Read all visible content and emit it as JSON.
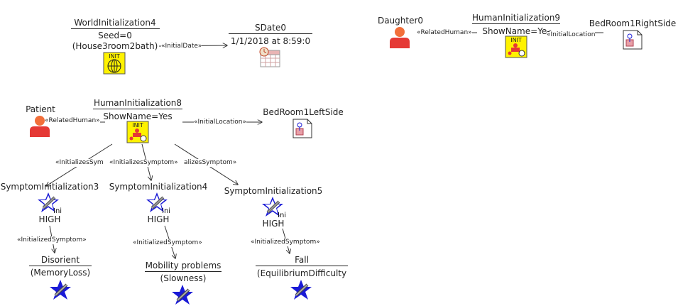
{
  "nodes": {
    "world_init": {
      "name": "WorldInitialization4",
      "attrs": [
        "Seed=0",
        "(House3room2bath)"
      ],
      "badge": "INIT"
    },
    "sdate": {
      "name": "SDate0",
      "attrs": [
        "1/1/2018 at 8:59:0"
      ]
    },
    "daughter": {
      "name": "Daughter0"
    },
    "human_init9": {
      "name": "HumanInitialization9",
      "attrs": [
        "ShowName=Ye-"
      ],
      "badge": "INIT"
    },
    "bedroom_right": {
      "name": "BedRoom1RightSide"
    },
    "patient": {
      "name": "Patient"
    },
    "human_init8": {
      "name": "HumanInitialization8",
      "attrs": [
        "ShowName=Yes"
      ],
      "badge": "INIT"
    },
    "bedroom_left": {
      "name": "BedRoom1LeftSide"
    },
    "sym3": {
      "name": "SymptomInitialization3",
      "attrs": [
        "HIGH"
      ],
      "badge": "Init"
    },
    "sym4": {
      "name": "SymptomInitialization4",
      "attrs": [
        "HIGH"
      ],
      "badge": "Init"
    },
    "sym5": {
      "name": "SymptomInitialization5",
      "attrs": [
        "HIGH"
      ],
      "badge": "Init"
    },
    "disorient": {
      "name": "Disorient",
      "attrs": [
        "(MemoryLoss)"
      ]
    },
    "mobility": {
      "name": "Mobility problems",
      "attrs": [
        "(Slowness)"
      ]
    },
    "fall": {
      "name": "Fall",
      "attrs": [
        "(EquilibriumDifficulty"
      ]
    }
  },
  "edges": {
    "initial_date": "«InitialDate»",
    "related_human_daughter": "«RelatedHuman»",
    "initial_location_9": "«InitialLocation",
    "related_human_patient": "«RelatedHuman»",
    "initial_location_8": "«InitialLocation»",
    "initializes_sym3": "«InitializesSym",
    "initializes_sym4": "«InitializesSymptom»",
    "initializes_sym5": "alizesSymptom»",
    "initialized_disorient": "«InitializedSymptom»",
    "initialized_mobility": "«InitializedSymptom»",
    "initialized_fall": "«InitializedSymptom»"
  },
  "colors": {
    "person": "#f26f3a",
    "person_body": "#e53935",
    "init_badge": "#fff200",
    "symptom_star": "#1a1ad6",
    "line": "#333333"
  },
  "icons": {
    "world_init": "globe-init-icon",
    "sdate": "calendar-clock-icon",
    "person": "person-icon",
    "human_init": "human-init-icon",
    "room": "room-icon",
    "symptom": "symptom-star-icon"
  }
}
